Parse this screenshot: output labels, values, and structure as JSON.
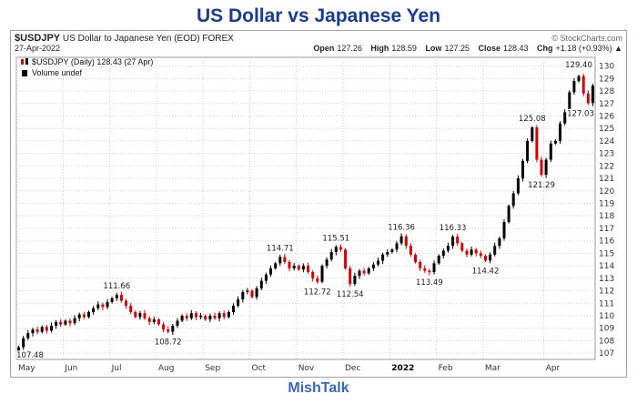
{
  "page": {
    "title": "US Dollar vs Japanese Yen",
    "footer": "MishTalk",
    "title_color": "#1b3c8c",
    "footer_color": "#3a67b5"
  },
  "header": {
    "symbol": "$USDJPY",
    "description": "US Dollar to Japanese Yen (EOD) FOREX",
    "source": "© StockCharts.com",
    "date": "27-Apr-2022",
    "quote": {
      "open_label": "Open",
      "open": "127.26",
      "high_label": "High",
      "high": "128.59",
      "low_label": "Low",
      "low": "127.25",
      "close_label": "Close",
      "close": "128.43",
      "chg_label": "Chg",
      "chg": "+1.18 (+0.93%) ▲"
    }
  },
  "legend": {
    "series": "$USDJPY (Daily) 128.43 (27 Apr)",
    "volume": "Volume undef"
  },
  "chart_data": {
    "type": "candlestick",
    "title": "US Dollar vs Japanese Yen",
    "symbol": "$USDJPY",
    "timeframe": "Daily, May 2021 - Apr 2022",
    "y_axis": {
      "min": 107,
      "max": 130,
      "step": 1,
      "side": "right"
    },
    "colors": {
      "up": "#000000",
      "down": "#cc0000",
      "grid": "#cfcfcf"
    },
    "x_ticks": [
      {
        "label": "May",
        "i": 0
      },
      {
        "label": "Jun",
        "i": 10
      },
      {
        "label": "Jul",
        "i": 20
      },
      {
        "label": "Aug",
        "i": 30
      },
      {
        "label": "Sep",
        "i": 40
      },
      {
        "label": "Oct",
        "i": 50
      },
      {
        "label": "Nov",
        "i": 60
      },
      {
        "label": "Dec",
        "i": 70
      },
      {
        "label": "2022",
        "i": 80,
        "bold": true
      },
      {
        "label": "Feb",
        "i": 90
      },
      {
        "label": "Mar",
        "i": 100
      },
      {
        "label": "Apr",
        "i": 113
      }
    ],
    "closes": [
      107.48,
      108.2,
      108.6,
      108.9,
      108.7,
      109.1,
      108.8,
      109.2,
      109.5,
      109.3,
      109.6,
      109.4,
      109.8,
      110.1,
      109.9,
      110.3,
      110.6,
      110.9,
      110.7,
      111.1,
      111.4,
      111.66,
      111.2,
      110.8,
      110.3,
      109.9,
      110.2,
      109.8,
      109.5,
      109.7,
      109.3,
      108.9,
      108.72,
      109.2,
      109.6,
      110.0,
      109.8,
      110.2,
      109.9,
      110.0,
      109.7,
      110.0,
      109.8,
      110.2,
      109.9,
      110.3,
      110.8,
      111.3,
      111.9,
      112.0,
      111.5,
      112.2,
      112.8,
      113.3,
      113.8,
      114.2,
      114.71,
      114.3,
      113.8,
      114.0,
      113.7,
      114.0,
      113.5,
      113.0,
      112.72,
      114.0,
      114.5,
      115.1,
      115.51,
      115.3,
      113.8,
      112.54,
      113.2,
      113.6,
      113.4,
      113.8,
      114.1,
      114.4,
      114.9,
      115.1,
      115.3,
      115.8,
      116.36,
      115.6,
      114.9,
      114.3,
      113.8,
      113.6,
      113.49,
      114.2,
      114.8,
      115.2,
      115.6,
      116.33,
      115.8,
      115.2,
      114.9,
      115.3,
      115.0,
      114.8,
      114.42,
      114.9,
      115.6,
      116.2,
      117.5,
      118.8,
      119.8,
      121.0,
      122.4,
      124.0,
      125.08,
      122.5,
      121.29,
      122.5,
      123.8,
      124.0,
      125.4,
      126.3,
      127.9,
      128.8,
      129.2,
      127.8,
      127.03,
      128.43
    ],
    "annotations": [
      {
        "i": 0,
        "v": 107.48,
        "label": "107.48",
        "pos": "below"
      },
      {
        "i": 21,
        "v": 111.66,
        "label": "111.66",
        "pos": "above"
      },
      {
        "i": 32,
        "v": 108.72,
        "label": "108.72",
        "pos": "below"
      },
      {
        "i": 56,
        "v": 114.71,
        "label": "114.71",
        "pos": "above"
      },
      {
        "i": 64,
        "v": 112.72,
        "label": "112.72",
        "pos": "below"
      },
      {
        "i": 68,
        "v": 115.51,
        "label": "115.51",
        "pos": "above"
      },
      {
        "i": 71,
        "v": 112.54,
        "label": "112.54",
        "pos": "below"
      },
      {
        "i": 82,
        "v": 116.36,
        "label": "116.36",
        "pos": "above"
      },
      {
        "i": 88,
        "v": 113.49,
        "label": "113.49",
        "pos": "below"
      },
      {
        "i": 93,
        "v": 116.33,
        "label": "116.33",
        "pos": "above"
      },
      {
        "i": 100,
        "v": 114.42,
        "label": "114.42",
        "pos": "below"
      },
      {
        "i": 110,
        "v": 125.08,
        "label": "125.08",
        "pos": "above"
      },
      {
        "i": 112,
        "v": 121.29,
        "label": "121.29",
        "pos": "below"
      },
      {
        "i": 120,
        "v": 129.4,
        "label": "129.40",
        "pos": "above"
      },
      {
        "i": 122,
        "v": 127.03,
        "label": "127.03",
        "pos": "below"
      }
    ]
  }
}
